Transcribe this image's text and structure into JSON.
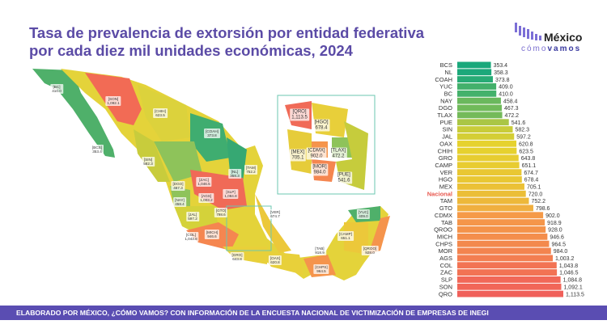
{
  "title": "Tasa de prevalencia de extorsión por entidad federativa por cada diez mil unidades económicas, 2024",
  "logo": {
    "name": "México",
    "tagline_a": "cómo",
    "tagline_b": "vamos"
  },
  "footer": "ELABORADO POR MÉXICO, ¿CÓMO VAMOS? CON INFORMACIÓN DE LA ENCUESTA NACIONAL DE VICTIMIZACIÓN DE EMPRESAS DE INEGI",
  "map_labels": [
    {
      "state": "BC",
      "value": "410.0"
    },
    {
      "state": "SON",
      "value": "1,092.1"
    },
    {
      "state": "CHIH",
      "value": "623.5"
    },
    {
      "state": "BCS",
      "value": "353.4"
    },
    {
      "state": "COAH",
      "value": "373.8"
    },
    {
      "state": "NL",
      "value": "358.3"
    },
    {
      "state": "SIN",
      "value": "582.3"
    },
    {
      "state": "DGO",
      "value": "467.3"
    },
    {
      "state": "TAM",
      "value": "752.2"
    },
    {
      "state": "ZAC",
      "value": "1,046.5"
    },
    {
      "state": "SLP",
      "value": "1,084.8"
    },
    {
      "state": "AGS",
      "value": "1,003.2"
    },
    {
      "state": "NAY",
      "value": "458.4"
    },
    {
      "state": "JAL",
      "value": "597.2"
    },
    {
      "state": "GTO",
      "value": "798.6"
    },
    {
      "state": "COL",
      "value": "1,043.8"
    },
    {
      "state": "MICH",
      "value": "946.6"
    },
    {
      "state": "GRO",
      "value": "643.8"
    },
    {
      "state": "VER",
      "value": "674.7"
    },
    {
      "state": "OAX",
      "value": "620.8"
    },
    {
      "state": "TAB",
      "value": "918.9"
    },
    {
      "state": "CAMP",
      "value": "651.1"
    },
    {
      "state": "YUC",
      "value": "409.0"
    },
    {
      "state": "QROO",
      "value": "928.0"
    },
    {
      "state": "CHPS",
      "value": "964.5"
    }
  ],
  "inset_labels": [
    {
      "state": "QRO",
      "value": "1,113.5"
    },
    {
      "state": "HGO",
      "value": "678.4"
    },
    {
      "state": "MEX",
      "value": "705.1"
    },
    {
      "state": "CDMX",
      "value": "902.0"
    },
    {
      "state": "TLAX",
      "value": "472.2"
    },
    {
      "state": "MOR",
      "value": "984.0"
    },
    {
      "state": "PUE",
      "value": "541.6"
    }
  ],
  "chart_data": {
    "type": "bar",
    "orientation": "horizontal",
    "title": "Tasa de prevalencia de extorsión por entidad federativa por cada diez mil unidades económicas, 2024",
    "categories": [
      "BCS",
      "NL",
      "COAH",
      "YUC",
      "BC",
      "NAY",
      "DGO",
      "TLAX",
      "PUE",
      "SIN",
      "JAL",
      "OAX",
      "CHIH",
      "GRO",
      "CAMP",
      "VER",
      "HGO",
      "MEX",
      "Nacional",
      "TAM",
      "GTO",
      "CDMX",
      "TAB",
      "QROO",
      "MICH",
      "CHPS",
      "MOR",
      "AGS",
      "COL",
      "ZAC",
      "SLP",
      "SON",
      "QRO"
    ],
    "values": [
      353.4,
      358.3,
      373.8,
      409.0,
      410.0,
      458.4,
      467.3,
      472.2,
      541.6,
      582.3,
      597.2,
      620.8,
      623.5,
      643.8,
      651.1,
      674.7,
      678.4,
      705.1,
      720.0,
      752.2,
      798.6,
      902.0,
      918.9,
      928.0,
      946.6,
      964.5,
      984.0,
      1003.2,
      1043.8,
      1046.5,
      1084.8,
      1092.1,
      1113.5
    ],
    "value_labels": [
      "353.4",
      "358.3",
      "373.8",
      "409.0",
      "410.0",
      "458.4",
      "467.3",
      "472.2",
      "541.6",
      "582.3",
      "597.2",
      "620.8",
      "623.5",
      "643.8",
      "651.1",
      "674.7",
      "678.4",
      "705.1",
      "720.0",
      "752.2",
      "798.6",
      "902.0",
      "918.9",
      "928.0",
      "946.6",
      "964.5",
      "984.0",
      "1,003.2",
      "1,043.8",
      "1,046.5",
      "1,084.8",
      "1,092.1",
      "1,113.5"
    ],
    "highlight": "Nacional",
    "highlight_color": "#e8584f",
    "color_scale": [
      "#16a77c",
      "#e6d22e",
      "#f59b48",
      "#f0605a"
    ],
    "xlim": [
      0,
      1113.5
    ],
    "grid": false,
    "legend": "none"
  }
}
